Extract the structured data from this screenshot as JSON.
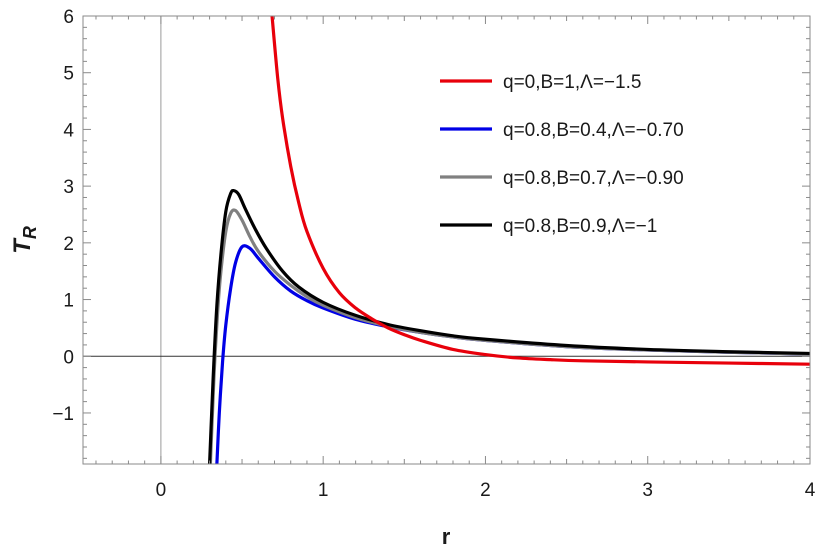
{
  "chart_data": {
    "type": "line",
    "xlabel": "r",
    "ylabel": "T",
    "ylabel_subscript": "R",
    "xlim": [
      -0.48,
      4.0
    ],
    "ylim": [
      -1.9,
      6.0
    ],
    "x_ticks": [
      {
        "value": 0,
        "label": "0"
      },
      {
        "value": 1,
        "label": "1"
      },
      {
        "value": 2,
        "label": "2"
      },
      {
        "value": 3,
        "label": "3"
      },
      {
        "value": 4,
        "label": "4"
      }
    ],
    "y_ticks": [
      {
        "value": -1,
        "label": "−1"
      },
      {
        "value": 0,
        "label": "0"
      },
      {
        "value": 1,
        "label": "1"
      },
      {
        "value": 2,
        "label": "2"
      },
      {
        "value": 3,
        "label": "3"
      },
      {
        "value": 4,
        "label": "4"
      },
      {
        "value": 5,
        "label": "5"
      },
      {
        "value": 6,
        "label": "6"
      }
    ],
    "grid": false,
    "legend_position": "top-right",
    "series": [
      {
        "name": "q=0,B=1,Λ=−1.5",
        "color": "#e8000b",
        "x": [
          0.685,
          0.72,
          0.75,
          0.8,
          0.85,
          0.9,
          1.0,
          1.1,
          1.2,
          1.3,
          1.4,
          1.5,
          1.6,
          1.8,
          2.0,
          2.2,
          2.4,
          2.6,
          3.0,
          3.5,
          4.0
        ],
        "y": [
          6.0,
          4.9,
          4.2,
          3.35,
          2.7,
          2.2,
          1.55,
          1.12,
          0.85,
          0.66,
          0.5,
          0.38,
          0.28,
          0.12,
          0.03,
          -0.03,
          -0.06,
          -0.08,
          -0.1,
          -0.12,
          -0.14
        ]
      },
      {
        "name": "q=0.8,B=0.4,Λ=−0.70",
        "color": "#0000e6",
        "x": [
          0.345,
          0.36,
          0.38,
          0.4,
          0.43,
          0.46,
          0.5,
          0.55,
          0.6,
          0.7,
          0.8,
          0.9,
          1.0,
          1.2,
          1.4,
          1.6,
          1.8,
          2.0,
          2.5,
          3.0,
          3.5,
          4.0
        ],
        "y": [
          -1.9,
          -1.0,
          -0.1,
          0.55,
          1.2,
          1.65,
          1.93,
          1.9,
          1.73,
          1.4,
          1.15,
          0.98,
          0.85,
          0.65,
          0.52,
          0.42,
          0.34,
          0.28,
          0.17,
          0.11,
          0.07,
          0.04
        ]
      },
      {
        "name": "q=0.8,B=0.7,Λ=−0.90",
        "color": "#808080",
        "x": [
          0.305,
          0.315,
          0.33,
          0.35,
          0.37,
          0.4,
          0.43,
          0.46,
          0.5,
          0.55,
          0.6,
          0.7,
          0.8,
          0.9,
          1.0,
          1.2,
          1.4,
          1.6,
          1.8,
          2.0,
          2.5,
          3.0,
          3.5,
          4.0
        ],
        "y": [
          -1.9,
          -1.2,
          -0.2,
          0.8,
          1.5,
          2.2,
          2.52,
          2.57,
          2.4,
          2.1,
          1.85,
          1.5,
          1.25,
          1.05,
          0.9,
          0.68,
          0.53,
          0.42,
          0.34,
          0.28,
          0.17,
          0.11,
          0.07,
          0.04
        ]
      },
      {
        "name": "q=0.8,B=0.9,Λ=−1",
        "color": "#000000",
        "x": [
          0.3,
          0.31,
          0.325,
          0.345,
          0.37,
          0.4,
          0.43,
          0.45,
          0.48,
          0.52,
          0.58,
          0.65,
          0.75,
          0.85,
          1.0,
          1.2,
          1.4,
          1.6,
          1.8,
          2.0,
          2.5,
          3.0,
          3.5,
          4.0
        ],
        "y": [
          -1.9,
          -1.2,
          -0.2,
          0.9,
          1.8,
          2.55,
          2.87,
          2.92,
          2.85,
          2.6,
          2.25,
          1.9,
          1.5,
          1.22,
          0.95,
          0.72,
          0.56,
          0.45,
          0.36,
          0.3,
          0.19,
          0.12,
          0.08,
          0.05
        ]
      }
    ]
  }
}
